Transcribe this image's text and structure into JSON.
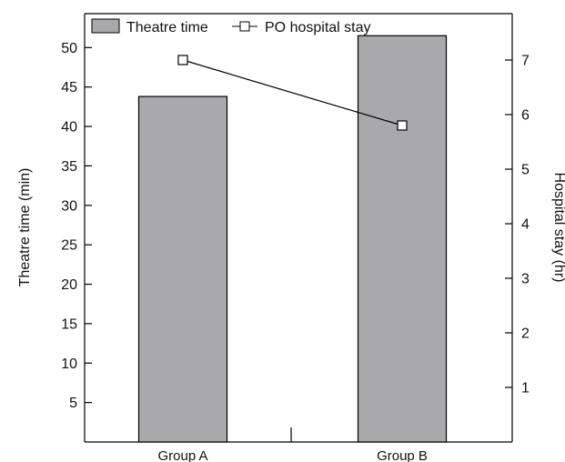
{
  "chart_data": {
    "type": "bar",
    "categories": [
      "Group A",
      "Group B"
    ],
    "series": [
      {
        "name": "Theatre time",
        "type": "bar",
        "axis": "left",
        "values": [
          43.8,
          51.5
        ],
        "color": "#a9a9ac"
      },
      {
        "name": "PO hospital stay",
        "type": "line",
        "axis": "right",
        "values": [
          7.0,
          5.8
        ],
        "color": "#000000",
        "marker": "open-square"
      }
    ],
    "ylabel": "Theatre time (min)",
    "y2label": "Hospital stay (hr)",
    "xlabel": "",
    "ylim": [
      0,
      54.3
    ],
    "y2lim": [
      0,
      7.85
    ],
    "yticks": [
      5,
      10,
      15,
      20,
      25,
      30,
      35,
      40,
      45,
      50
    ],
    "y2ticks": [
      1,
      2,
      3,
      4,
      5,
      6,
      7
    ],
    "legend": "top",
    "grid": false
  }
}
